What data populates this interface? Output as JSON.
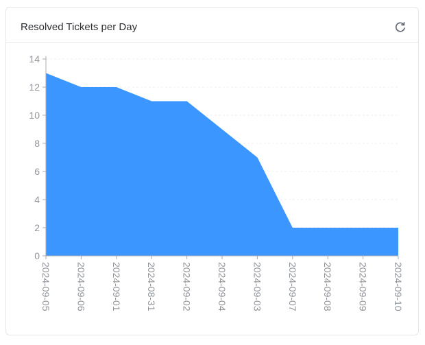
{
  "card": {
    "title": "Resolved Tickets per Day"
  },
  "icons": {
    "refresh": "refresh-icon"
  },
  "colors": {
    "area_fill": "#3b97ff",
    "axis": "#a7abb0",
    "grid": "#e9ecef",
    "tick_text": "#8f949a",
    "title_text": "#2b2f33",
    "icon": "#5b6570"
  },
  "chart_data": {
    "type": "area",
    "title": "Resolved Tickets per Day",
    "categories": [
      "2024-09-05",
      "2024-09-06",
      "2024-09-01",
      "2024-08-31",
      "2024-09-02",
      "2024-09-04",
      "2024-09-03",
      "2024-09-07",
      "2024-09-08",
      "2024-09-09",
      "2024-09-10"
    ],
    "values": [
      13,
      12,
      12,
      11,
      11,
      9,
      7,
      2,
      2,
      2,
      2
    ],
    "yticks": [
      0,
      2,
      4,
      6,
      8,
      10,
      12,
      14
    ],
    "ylim": [
      0,
      14
    ],
    "xlabel": "",
    "ylabel": "",
    "grid": true,
    "legend": "none"
  }
}
